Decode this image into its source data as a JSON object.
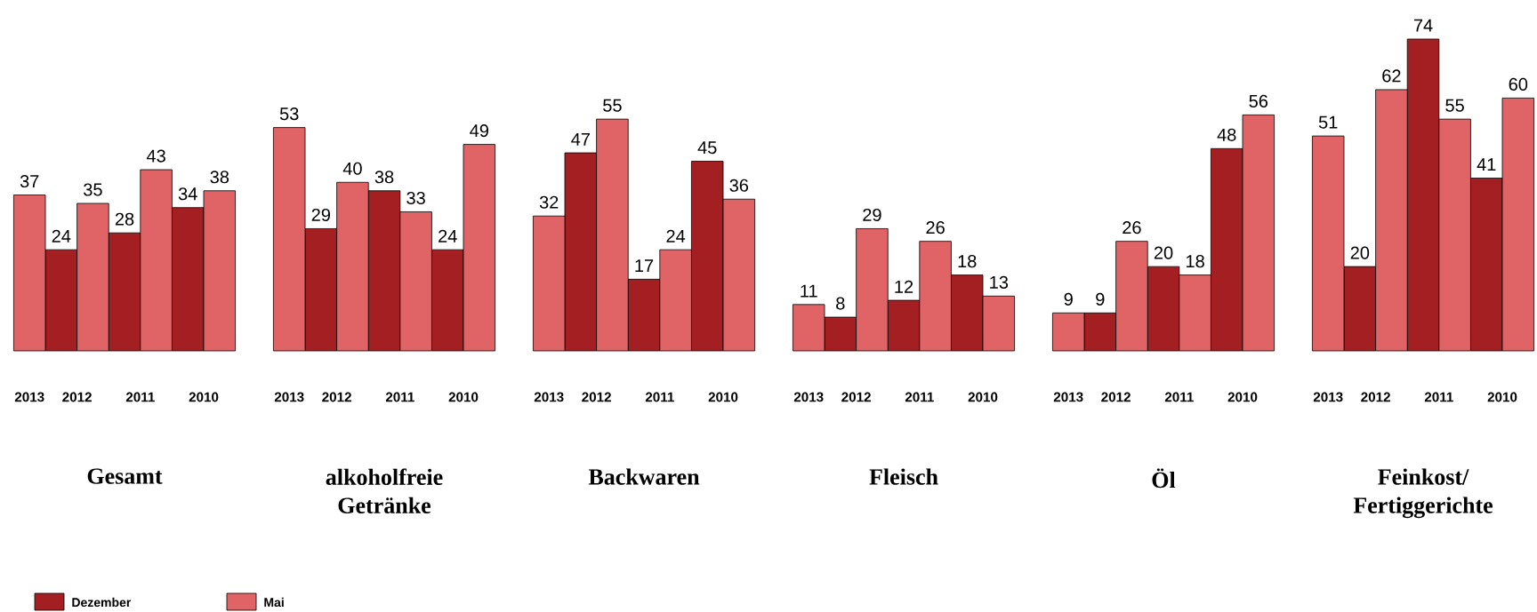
{
  "chart_data": [
    {
      "type": "bar",
      "title": "Gesamt",
      "categories": [
        "2013",
        "2012",
        "2011",
        "2010"
      ],
      "data_labels": true,
      "legend": "bottom",
      "series": [
        {
          "name": "Dezember",
          "color": "#a31f22",
          "values": [
            null,
            24,
            28,
            34
          ]
        },
        {
          "name": "Mai",
          "color": "#e06466",
          "values": [
            37,
            35,
            43,
            38
          ]
        }
      ]
    },
    {
      "type": "bar",
      "title": "alkoholfreie Getränke",
      "categories": [
        "2013",
        "2012",
        "2011",
        "2010"
      ],
      "data_labels": true,
      "series": [
        {
          "color": "#a31f22",
          "values": [
            null,
            29,
            38,
            24
          ]
        },
        {
          "color": "#e06466",
          "values": [
            53,
            40,
            33,
            49
          ]
        }
      ]
    },
    {
      "type": "bar",
      "title": "Backwaren",
      "categories": [
        "2013",
        "2012",
        "2011",
        "2010"
      ],
      "data_labels": true,
      "series": [
        {
          "color": "#a31f22",
          "values": [
            null,
            47,
            17,
            45
          ]
        },
        {
          "color": "#e06466",
          "values": [
            32,
            55,
            24,
            36
          ]
        }
      ]
    },
    {
      "type": "bar",
      "title": "Fleisch",
      "categories": [
        "2013",
        "2012",
        "2011",
        "2010"
      ],
      "data_labels": true,
      "series": [
        {
          "color": "#a31f22",
          "values": [
            null,
            8,
            12,
            18
          ]
        },
        {
          "color": "#e06466",
          "values": [
            11,
            29,
            26,
            13
          ]
        }
      ]
    },
    {
      "type": "bar",
      "title": "Öl",
      "categories": [
        "2013",
        "2012",
        "2011",
        "2010"
      ],
      "data_labels": true,
      "series": [
        {
          "color": "#a31f22",
          "values": [
            null,
            9,
            20,
            48
          ]
        },
        {
          "color": "#e06466",
          "values": [
            9,
            26,
            18,
            56
          ]
        }
      ]
    },
    {
      "type": "bar",
      "title": "Feinkost/ Fertiggerichte",
      "categories": [
        "2013",
        "2012",
        "2011",
        "2010"
      ],
      "data_labels": true,
      "series": [
        {
          "color": "#a31f22",
          "values": [
            null,
            20,
            74,
            41
          ]
        },
        {
          "color": "#e06466",
          "values": [
            51,
            62,
            55,
            60
          ]
        }
      ]
    }
  ]
}
